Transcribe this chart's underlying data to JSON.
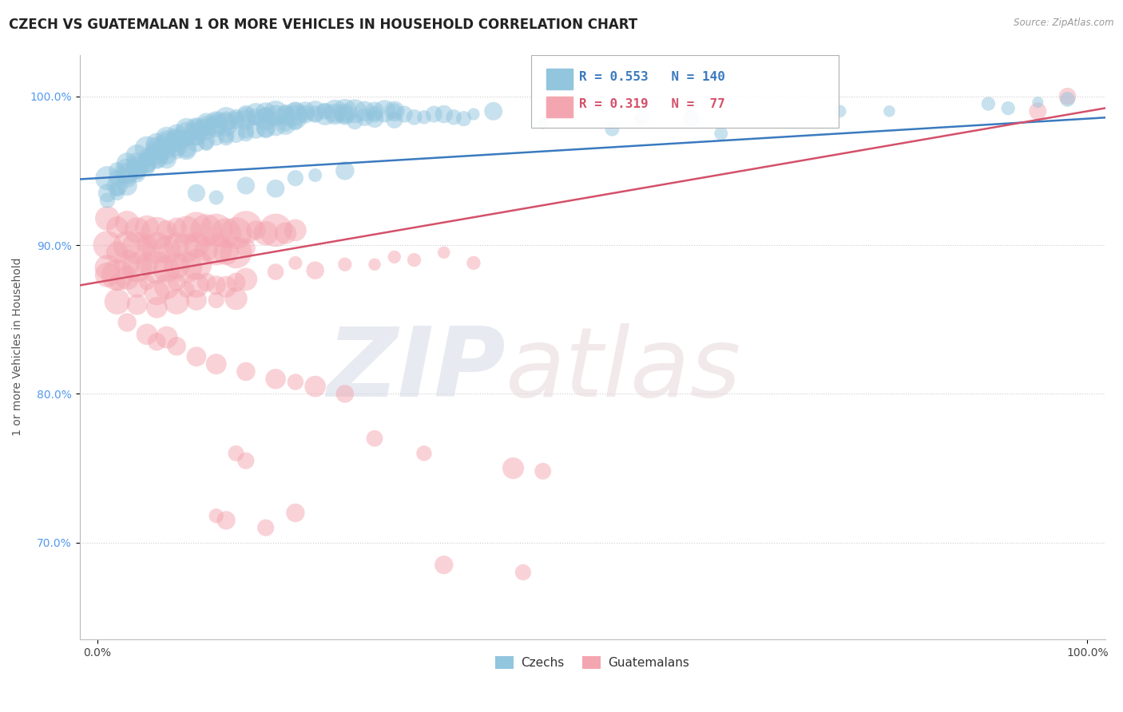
{
  "title": "CZECH VS GUATEMALAN 1 OR MORE VEHICLES IN HOUSEHOLD CORRELATION CHART",
  "source": "Source: ZipAtlas.com",
  "ylabel": "1 or more Vehicles in Household",
  "ytick_labels": [
    "70.0%",
    "80.0%",
    "90.0%",
    "100.0%"
  ],
  "ytick_values": [
    0.7,
    0.8,
    0.9,
    1.0
  ],
  "czech_R": 0.553,
  "czech_N": 140,
  "guatemalan_R": 0.319,
  "guatemalan_N": 77,
  "czech_color": "#92c5de",
  "guatemalan_color": "#f4a6b0",
  "czech_trend_color": "#3a7abf",
  "guatemalan_trend_color": "#d4506a",
  "background_color": "#ffffff",
  "ylim_min": 0.635,
  "ylim_max": 1.028,
  "xlim_min": -0.018,
  "xlim_max": 1.018,
  "grid_color": "#cccccc",
  "title_fontsize": 12,
  "axis_label_fontsize": 10,
  "tick_fontsize": 10,
  "czech_trend_slope": 0.04,
  "czech_trend_intercept": 0.945,
  "guatemalan_trend_slope": 0.115,
  "guatemalan_trend_intercept": 0.875
}
